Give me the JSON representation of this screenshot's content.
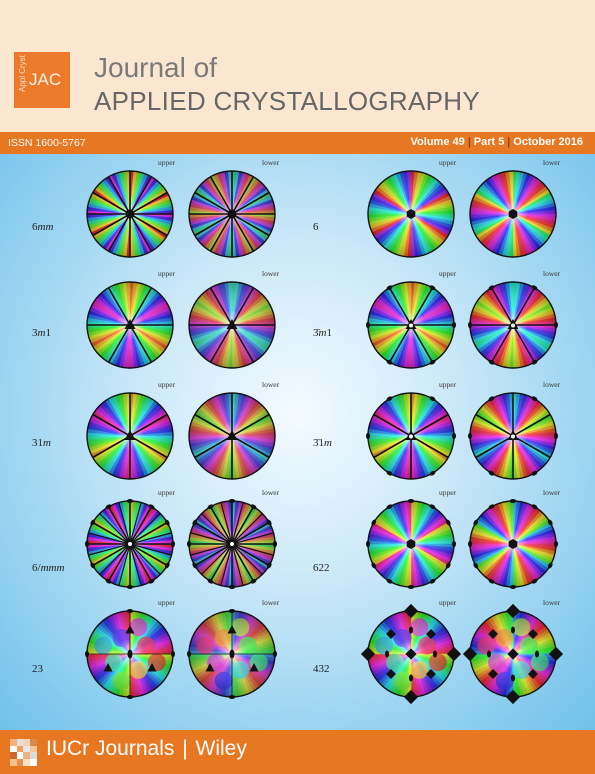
{
  "journal": {
    "logo_small": "Appl Cryst",
    "logo_big": "JAC",
    "title_line1": "Journal of",
    "title_line2": "APPLIED CRYSTALLOGRAPHY"
  },
  "bar": {
    "issn": "ISSN 1600-5767",
    "volume": "Volume 49",
    "part": "Part 5",
    "date": "October 2016",
    "separator": "|"
  },
  "figure": {
    "upper_label": "upper",
    "lower_label": "lower",
    "left": [
      {
        "symbol_main": "6",
        "symbol_italic": "mm",
        "symbol_after": "",
        "mirrors": 6,
        "dots": 0,
        "center": "hexagon"
      },
      {
        "symbol_main": "3",
        "symbol_italic": "m",
        "symbol_after": "1",
        "mirrors": 3,
        "dots": 0,
        "center": "triangle"
      },
      {
        "symbol_main": "31",
        "symbol_italic": "m",
        "symbol_after": "",
        "mirrors": 3,
        "dots": 0,
        "center": "triangle"
      },
      {
        "symbol_main": "6/",
        "symbol_italic": "mmm",
        "symbol_after": "",
        "mirrors": 6,
        "dots": 12,
        "center": "ring"
      },
      {
        "symbol_main": "23",
        "symbol_italic": "",
        "symbol_after": "",
        "mirrors": 0,
        "dots": 4,
        "center": "cubic"
      }
    ],
    "right": [
      {
        "symbol_main": "6",
        "symbol_italic": "",
        "symbol_after": "",
        "mirrors": 0,
        "dots": 0,
        "center": "hexagon"
      },
      {
        "symbol_main": "3̄",
        "symbol_italic": "m",
        "symbol_after": "1",
        "mirrors": 3,
        "dots": 6,
        "center": "triangle-white"
      },
      {
        "symbol_main": "3̄1",
        "symbol_italic": "m",
        "symbol_after": "",
        "mirrors": 3,
        "dots": 6,
        "center": "triangle-white"
      },
      {
        "symbol_main": "622",
        "symbol_italic": "",
        "symbol_after": "",
        "mirrors": 0,
        "dots": 12,
        "center": "hexagon"
      },
      {
        "symbol_main": "432",
        "symbol_italic": "",
        "symbol_after": "",
        "mirrors": 0,
        "dots": 4,
        "center": "cubic-diamond"
      }
    ]
  },
  "footer": {
    "publisher1": "IUCr Journals",
    "separator": "|",
    "publisher2": "Wiley"
  },
  "colors": {
    "orange": "#e87722",
    "header_bg": "#fbe6d0",
    "sky": "#6fc1ea"
  }
}
